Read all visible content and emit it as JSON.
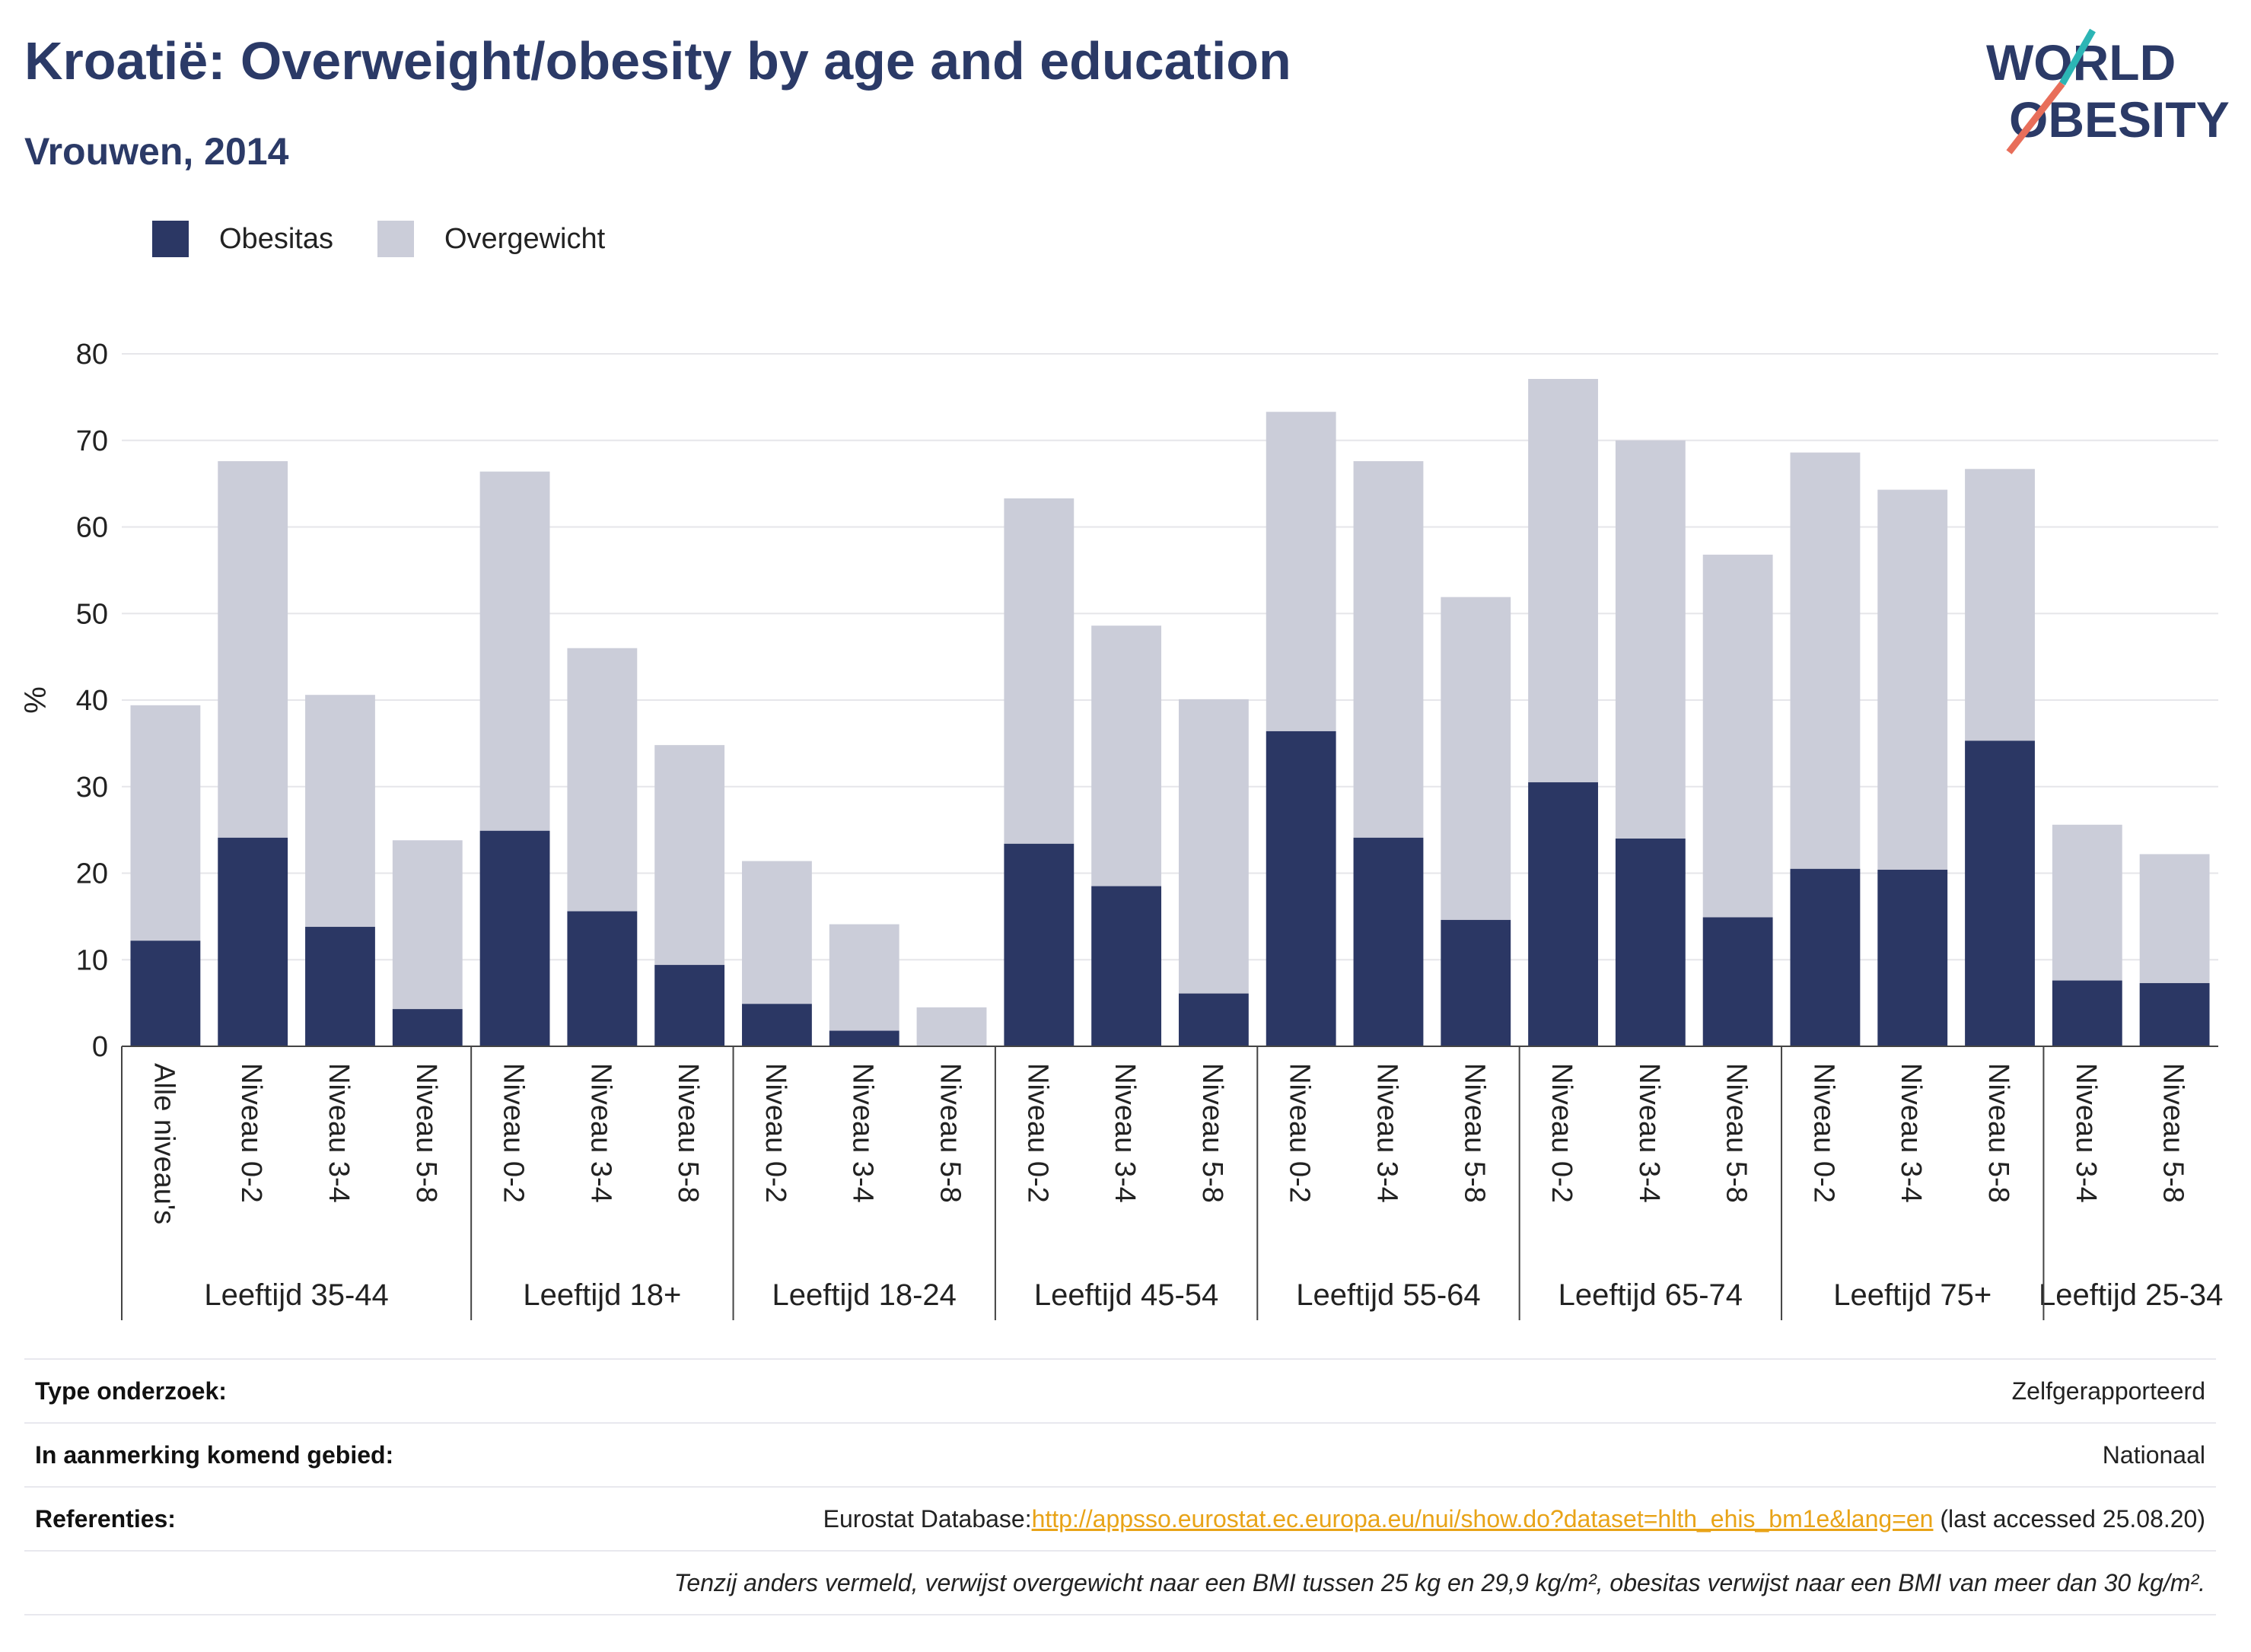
{
  "header": {
    "title": "Kroatië: Overweight/obesity by age and education",
    "subtitle": "Vrouwen, 2014",
    "logo_line1": "WORLD",
    "logo_line2": "OBESITY"
  },
  "colors": {
    "obesitas": "#2b3764",
    "overgewicht": "#cbcdd9",
    "accent_teal": "#2cb5b5",
    "accent_red": "#e86e5a",
    "brand": "#2b3a67"
  },
  "legend": [
    {
      "label": "Obesitas",
      "color": "#2b3764"
    },
    {
      "label": "Overgewicht",
      "color": "#cbcdd9"
    }
  ],
  "chart_data": {
    "type": "bar",
    "stacked": true,
    "ylabel": "%",
    "ylim": [
      0,
      80
    ],
    "yticks": [
      0,
      10,
      20,
      30,
      40,
      50,
      60,
      70,
      80
    ],
    "groups": [
      {
        "label": "Leeftijd 35-44",
        "categories": [
          "Alle niveau's",
          "Niveau 0-2",
          "Niveau 3-4",
          "Niveau 5-8"
        ],
        "obesitas": [
          12.2,
          24.1,
          13.8,
          4.3
        ],
        "total": [
          39.4,
          67.6,
          40.6,
          23.8
        ]
      },
      {
        "label": "Leeftijd 18+",
        "categories": [
          "Niveau 0-2",
          "Niveau 3-4",
          "Niveau 5-8"
        ],
        "obesitas": [
          24.9,
          15.6,
          9.4
        ],
        "total": [
          66.4,
          46.0,
          34.8
        ]
      },
      {
        "label": "Leeftijd 18-24",
        "categories": [
          "Niveau 0-2",
          "Niveau 3-4",
          "Niveau 5-8"
        ],
        "obesitas": [
          4.9,
          1.8,
          0
        ],
        "total": [
          21.4,
          14.1,
          4.5
        ]
      },
      {
        "label": "Leeftijd 45-54",
        "categories": [
          "Niveau 0-2",
          "Niveau 3-4",
          "Niveau 5-8"
        ],
        "obesitas": [
          23.4,
          18.5,
          6.1
        ],
        "total": [
          63.3,
          48.6,
          40.1
        ]
      },
      {
        "label": "Leeftijd 55-64",
        "categories": [
          "Niveau 0-2",
          "Niveau 3-4",
          "Niveau 5-8"
        ],
        "obesitas": [
          36.4,
          24.1,
          14.6
        ],
        "total": [
          73.3,
          67.6,
          51.9
        ]
      },
      {
        "label": "Leeftijd 65-74",
        "categories": [
          "Niveau 0-2",
          "Niveau 3-4",
          "Niveau 5-8"
        ],
        "obesitas": [
          30.5,
          24.0,
          14.9
        ],
        "total": [
          77.1,
          70.0,
          56.8
        ]
      },
      {
        "label": "Leeftijd 75+",
        "categories": [
          "Niveau 0-2",
          "Niveau 3-4",
          "Niveau 5-8"
        ],
        "obesitas": [
          20.5,
          20.4,
          35.3
        ],
        "total": [
          68.6,
          64.3,
          66.7
        ]
      },
      {
        "label": "Leeftijd 25-34",
        "categories": [
          "Niveau 3-4",
          "Niveau 5-8"
        ],
        "obesitas": [
          7.6,
          7.3
        ],
        "total": [
          25.6,
          22.2
        ]
      }
    ]
  },
  "info": {
    "survey_label": "Type onderzoek:",
    "survey_value": "Zelfgerapporteerd",
    "area_label": "In aanmerking komend gebied:",
    "area_value": "Nationaal",
    "ref_label": "Referenties:",
    "ref_prefix": "Eurostat Database:",
    "ref_link": "http://appsso.eurostat.ec.europa.eu/nui/show.do?dataset=hlth_ehis_bm1e&lang=en",
    "ref_suffix": " (last accessed 25.08.20)",
    "note": "Tenzij anders vermeld, verwijst overgewicht naar een BMI tussen 25 kg en 29,9 kg/m², obesitas verwijst naar een BMI van meer dan 30 kg/m²."
  }
}
